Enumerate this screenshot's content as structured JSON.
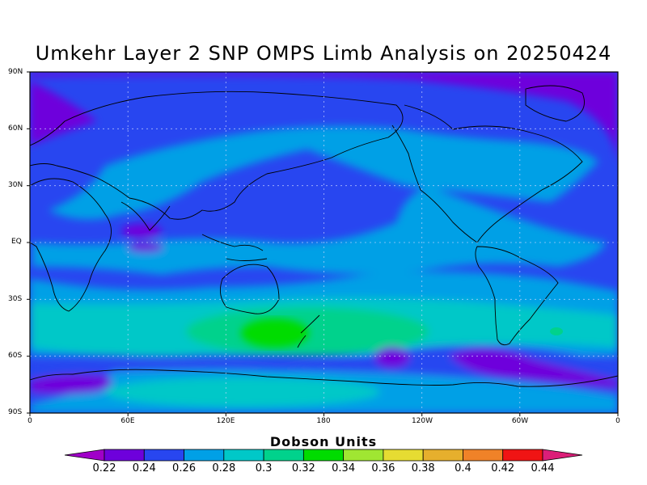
{
  "title": "Umkehr Layer 2 SNP OMPS Limb Analysis on 20250424",
  "colorbar": {
    "title": "Dobson Units",
    "ticks": [
      "0.22",
      "0.24",
      "0.26",
      "0.28",
      "0.3",
      "0.32",
      "0.34",
      "0.36",
      "0.38",
      "0.4",
      "0.42",
      "0.44"
    ],
    "colors": [
      "#a000c8",
      "#6e00dc",
      "#2846f0",
      "#00a0e6",
      "#00c8c8",
      "#00d28c",
      "#00dc00",
      "#a0e632",
      "#e6dc32",
      "#e6af2d",
      "#f08228",
      "#f01414",
      "#dc1e78"
    ]
  },
  "axes": {
    "lat_labels": [
      "90N",
      "60N",
      "30N",
      "EQ",
      "30S",
      "60S",
      "90S"
    ],
    "lon_labels": [
      "0",
      "60E",
      "120E",
      "180",
      "120W",
      "60W",
      "0"
    ]
  },
  "chart_data": {
    "type": "heatmap",
    "title": "Umkehr Layer 2 SNP OMPS Limb Analysis on 20250424",
    "xlabel": "",
    "ylabel": "",
    "units": "Dobson Units",
    "x_range": [
      0,
      360
    ],
    "y_range": [
      -90,
      90
    ],
    "grid": true,
    "value_range": [
      0.22,
      0.44
    ],
    "zonal_bands": [
      {
        "lat": [
          75,
          90
        ],
        "value": 0.23
      },
      {
        "lat": [
          55,
          75
        ],
        "value": 0.25
      },
      {
        "lat": [
          30,
          55
        ],
        "value": 0.27
      },
      {
        "lat": [
          -30,
          30
        ],
        "value": 0.26
      },
      {
        "lat": [
          -40,
          -30
        ],
        "value": 0.28
      },
      {
        "lat": [
          -55,
          -40
        ],
        "value": 0.31
      },
      {
        "lat": [
          -70,
          -55
        ],
        "value": 0.25
      },
      {
        "lat": [
          -90,
          -70
        ],
        "value": 0.28
      }
    ],
    "features": [
      {
        "lon": 150,
        "lat": -47,
        "value": 0.33
      },
      {
        "lon": 70,
        "lat": 5,
        "value": 0.23
      },
      {
        "lon": 180,
        "lat": 80,
        "value": 0.23
      },
      {
        "lon": 10,
        "lat": -75,
        "value": 0.23
      },
      {
        "lon": 290,
        "lat": -65,
        "value": 0.23
      },
      {
        "lon": 215,
        "lat": -60,
        "value": 0.23
      }
    ]
  }
}
